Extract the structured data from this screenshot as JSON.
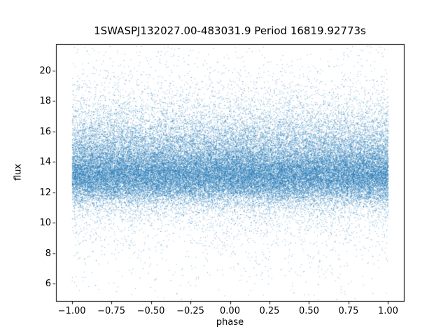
{
  "chart_data": {
    "type": "scatter",
    "title": "1SWASPJ132027.00-483031.9 Period 16819.92773s",
    "xlabel": "phase",
    "ylabel": "flux",
    "xlim": [
      -1.1,
      1.1
    ],
    "ylim": [
      4.85,
      21.75
    ],
    "x_ticks": [
      -1.0,
      -0.75,
      -0.5,
      -0.25,
      0.0,
      0.25,
      0.5,
      0.75,
      1.0
    ],
    "x_tick_labels": [
      "−1.00",
      "−0.75",
      "−0.50",
      "−0.25",
      "0.00",
      "0.25",
      "0.50",
      "0.75",
      "1.00"
    ],
    "y_ticks": [
      6,
      8,
      10,
      12,
      14,
      16,
      18,
      20
    ],
    "y_tick_labels": [
      "6",
      "8",
      "10",
      "12",
      "14",
      "16",
      "18",
      "20"
    ],
    "grid": false,
    "legend": null,
    "marker_color": "#1f77b4",
    "marker_alpha": 0.6,
    "marker_size_px": 1,
    "n_points": 55000,
    "seed": 12345,
    "x_distribution": {
      "type": "uniform",
      "min": -1.0,
      "max": 1.0
    },
    "y_distribution": {
      "type": "gaussian_mixture",
      "clip": [
        4.95,
        21.65
      ],
      "components": [
        {
          "weight": 0.4,
          "mean": 13.0,
          "std": 0.85
        },
        {
          "weight": 0.34,
          "mean": 14.0,
          "std": 1.5
        },
        {
          "weight": 0.2,
          "mean": 14.5,
          "std": 2.3
        },
        {
          "weight": 0.06,
          "mean": 13.5,
          "std": 4.0
        }
      ]
    }
  }
}
